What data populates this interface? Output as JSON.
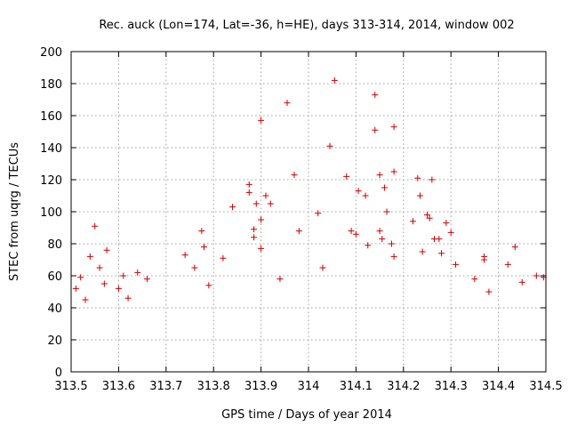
{
  "chart_data": {
    "type": "scatter",
    "title": "Rec. auck (Lon=174, Lat=-36, h=HE), days 313-314, 2014, window 002",
    "xlabel": "GPS time / Days of year 2014",
    "ylabel": "STEC from uqrg / TECUs",
    "xlim": [
      313.5,
      314.5
    ],
    "ylim": [
      0,
      200
    ],
    "xticks": [
      313.5,
      313.6,
      313.7,
      313.8,
      313.9,
      314.0,
      314.1,
      314.2,
      314.3,
      314.4,
      314.5
    ],
    "xtick_labels": [
      "313.5",
      "313.6",
      "313.7",
      "313.8",
      "313.9",
      "314",
      "314.1",
      "314.2",
      "314.3",
      "314.4",
      "314.5"
    ],
    "yticks": [
      0,
      20,
      40,
      60,
      80,
      100,
      120,
      140,
      160,
      180,
      200
    ],
    "ytick_labels": [
      "0",
      "20",
      "40",
      "60",
      "80",
      "100",
      "120",
      "140",
      "160",
      "180",
      "200"
    ],
    "grid": true,
    "marker": "+",
    "color": "#cc0000",
    "series": [
      {
        "points": [
          [
            313.51,
            52
          ],
          [
            313.52,
            59
          ],
          [
            313.53,
            45
          ],
          [
            313.54,
            72
          ],
          [
            313.55,
            91
          ],
          [
            313.56,
            65
          ],
          [
            313.57,
            55
          ],
          [
            313.575,
            76
          ],
          [
            313.6,
            52
          ],
          [
            313.61,
            60
          ],
          [
            313.62,
            46
          ],
          [
            313.64,
            62
          ],
          [
            313.66,
            58
          ],
          [
            313.74,
            73
          ],
          [
            313.76,
            65
          ],
          [
            313.775,
            88
          ],
          [
            313.78,
            78
          ],
          [
            313.79,
            54
          ],
          [
            313.82,
            71
          ],
          [
            313.84,
            103
          ],
          [
            313.875,
            117
          ],
          [
            313.875,
            112
          ],
          [
            313.885,
            89
          ],
          [
            313.885,
            84
          ],
          [
            313.89,
            105
          ],
          [
            313.9,
            157
          ],
          [
            313.9,
            95
          ],
          [
            313.9,
            77
          ],
          [
            313.91,
            110
          ],
          [
            313.92,
            105
          ],
          [
            313.94,
            58
          ],
          [
            313.955,
            168
          ],
          [
            313.97,
            123
          ],
          [
            313.98,
            88
          ],
          [
            314.02,
            99
          ],
          [
            314.03,
            65
          ],
          [
            314.045,
            141
          ],
          [
            314.055,
            182
          ],
          [
            314.08,
            122
          ],
          [
            314.09,
            88
          ],
          [
            314.1,
            86
          ],
          [
            314.105,
            113
          ],
          [
            314.12,
            110
          ],
          [
            314.125,
            79
          ],
          [
            314.14,
            173
          ],
          [
            314.14,
            151
          ],
          [
            314.15,
            123
          ],
          [
            314.15,
            88
          ],
          [
            314.155,
            83
          ],
          [
            314.16,
            115
          ],
          [
            314.165,
            100
          ],
          [
            314.175,
            80
          ],
          [
            314.18,
            153
          ],
          [
            314.18,
            125
          ],
          [
            314.18,
            72
          ],
          [
            314.22,
            94
          ],
          [
            314.23,
            121
          ],
          [
            314.235,
            110
          ],
          [
            314.24,
            75
          ],
          [
            314.25,
            98
          ],
          [
            314.255,
            96
          ],
          [
            314.26,
            120
          ],
          [
            314.265,
            83
          ],
          [
            314.275,
            83
          ],
          [
            314.28,
            74
          ],
          [
            314.29,
            93
          ],
          [
            314.3,
            87
          ],
          [
            314.31,
            67
          ],
          [
            314.35,
            58
          ],
          [
            314.37,
            72
          ],
          [
            314.37,
            70
          ],
          [
            314.38,
            50
          ],
          [
            314.42,
            67
          ],
          [
            314.435,
            78
          ],
          [
            314.45,
            56
          ],
          [
            314.48,
            60
          ],
          [
            314.495,
            59
          ]
        ]
      }
    ]
  }
}
